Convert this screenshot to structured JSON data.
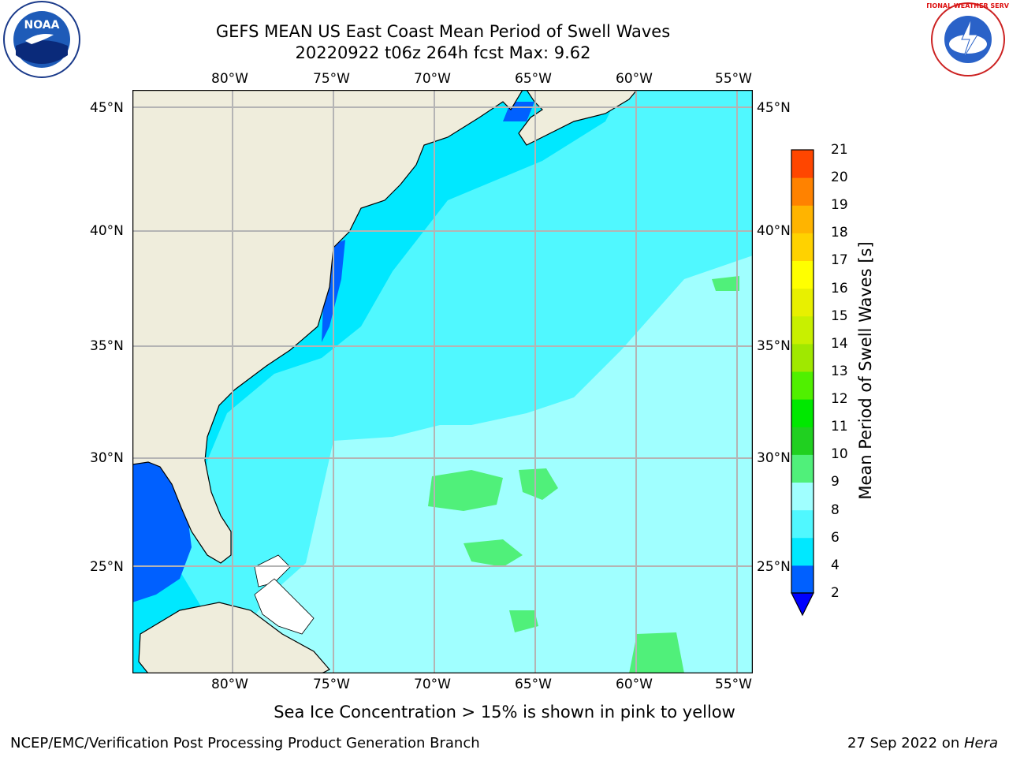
{
  "header": {
    "title_line1": "GEFS MEAN US East Coast Mean Period of Swell Waves",
    "title_line2": "20220922 t06z 264h fcst   Max: 9.62",
    "logo_left_text": "NOAA",
    "logo_right_text": "NATIONAL WEATHER SERVICE"
  },
  "map": {
    "lon_labels": [
      "80°W",
      "75°W",
      "70°W",
      "65°W",
      "60°W",
      "55°W"
    ],
    "lat_labels": [
      "45°N",
      "40°N",
      "35°N",
      "30°N",
      "25°N"
    ],
    "land_color": "#efeddc",
    "grid_color": "#b4b4b4",
    "water_colors": {
      "2-4": "#0060ff",
      "4-6": "#00e8ff",
      "6-8": "#50f8ff",
      "8-9": "#a0ffff",
      "9-10": "#50f07a"
    }
  },
  "colorbar": {
    "label": "Mean Period of Swell Waves [s]",
    "ticks": [
      "2",
      "4",
      "6",
      "8",
      "9",
      "10",
      "11",
      "12",
      "13",
      "14",
      "15",
      "16",
      "17",
      "18",
      "19",
      "20",
      "21"
    ],
    "colors": [
      "#0060ff",
      "#00e8ff",
      "#50f8ff",
      "#a0ffff",
      "#50f07a",
      "#20d020",
      "#00e800",
      "#50f000",
      "#a0e800",
      "#c8f000",
      "#e8f000",
      "#ffff00",
      "#ffd200",
      "#ffb400",
      "#ff8200",
      "#ff4600",
      "#ff0000"
    ],
    "extend_color": "#0000ff"
  },
  "footer": {
    "sea_ice_note": "Sea Ice Concentration > 15% is shown in pink to yellow",
    "credit": "NCEP/EMC/Verification Post Processing Product Generation Branch",
    "date": "27 Sep 2022 on ",
    "machine": "Hera"
  }
}
